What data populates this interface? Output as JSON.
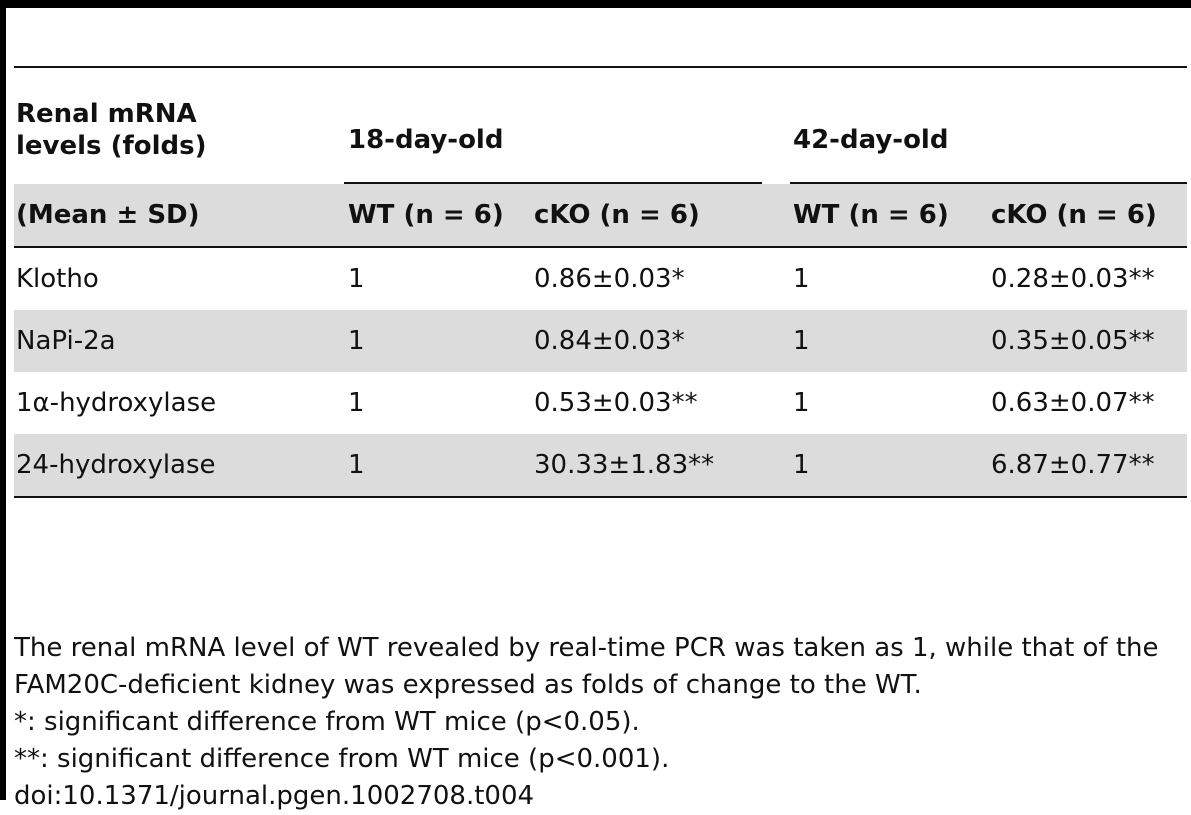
{
  "table": {
    "header": {
      "col0_line1": "Renal mRNA",
      "col0_line2": "levels (folds)",
      "group_18": "18-day-old",
      "group_42": "42-day-old",
      "subheaders": [
        "(Mean ± SD)",
        "WT (n = 6)",
        "cKO (n = 6)",
        "WT (n = 6)",
        "cKO (n = 6)"
      ]
    },
    "rows": [
      {
        "label": "Klotho",
        "wt18": "1",
        "cko18": "0.86±0.03*",
        "wt42": "1",
        "cko42": "0.28±0.03**"
      },
      {
        "label": "NaPi-2a",
        "wt18": "1",
        "cko18": "0.84±0.03*",
        "wt42": "1",
        "cko42": "0.35±0.05**"
      },
      {
        "label": "1α-hydroxylase",
        "wt18": "1",
        "cko18": "0.53±0.03**",
        "wt42": "1",
        "cko42": "0.63±0.07**"
      },
      {
        "label": "24-hydroxylase",
        "wt18": "1",
        "cko18": "30.33±1.83**",
        "wt42": "1",
        "cko42": "6.87±0.77**"
      }
    ]
  },
  "footnotes": {
    "note": "The renal mRNA level of WT revealed by real-time PCR was taken as 1, while that of the FAM20C-deficient kidney was expressed as folds of change to the WT.",
    "sig1": "*: significant difference from WT mice (p<0.05).",
    "sig2": "**: significant difference from WT mice (p<0.001).",
    "doi": "doi:10.1371/journal.pgen.1002708.t004"
  }
}
